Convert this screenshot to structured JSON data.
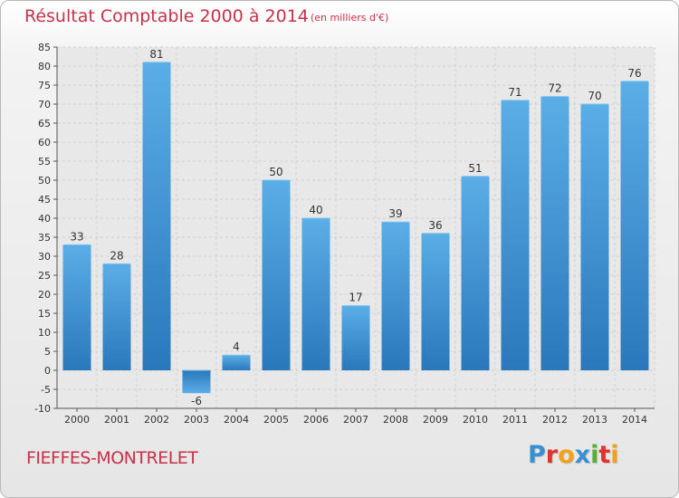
{
  "header": {
    "title": "Résultat Comptable 2000 à 2014",
    "subtitle": "(en milliers d'€)"
  },
  "footer": {
    "commune": "FIEFFES-MONTRELET",
    "logo_letters": [
      {
        "char": "P",
        "color": "#3a8fd0"
      },
      {
        "char": "r",
        "color": "#e0332c"
      },
      {
        "char": "o",
        "color": "#f0a21a"
      },
      {
        "char": "x",
        "color": "#3a8fd0"
      },
      {
        "char": "i",
        "color": "#58b030"
      },
      {
        "char": "t",
        "color": "#e0332c"
      },
      {
        "char": "i",
        "color": "#f0a21a"
      }
    ]
  },
  "chart_data": {
    "type": "bar",
    "title": "Résultat Comptable 2000 à 2014",
    "subtitle": "(en milliers d'€)",
    "categories": [
      "2000",
      "2001",
      "2002",
      "2003",
      "2004",
      "2005",
      "2006",
      "2007",
      "2008",
      "2009",
      "2010",
      "2011",
      "2012",
      "2013",
      "2014"
    ],
    "values": [
      33,
      28,
      81,
      -6,
      4,
      50,
      40,
      17,
      39,
      36,
      51,
      71,
      72,
      70,
      76
    ],
    "ylim": [
      -10,
      85
    ],
    "yticks": [
      -10,
      -5,
      0,
      5,
      10,
      15,
      20,
      25,
      30,
      35,
      40,
      45,
      50,
      55,
      60,
      65,
      70,
      75,
      80,
      85
    ],
    "grid": true,
    "bar_color": "#3d93d6",
    "bar_color_light": "#5aaee6",
    "bar_color_dark": "#2a78bc"
  }
}
